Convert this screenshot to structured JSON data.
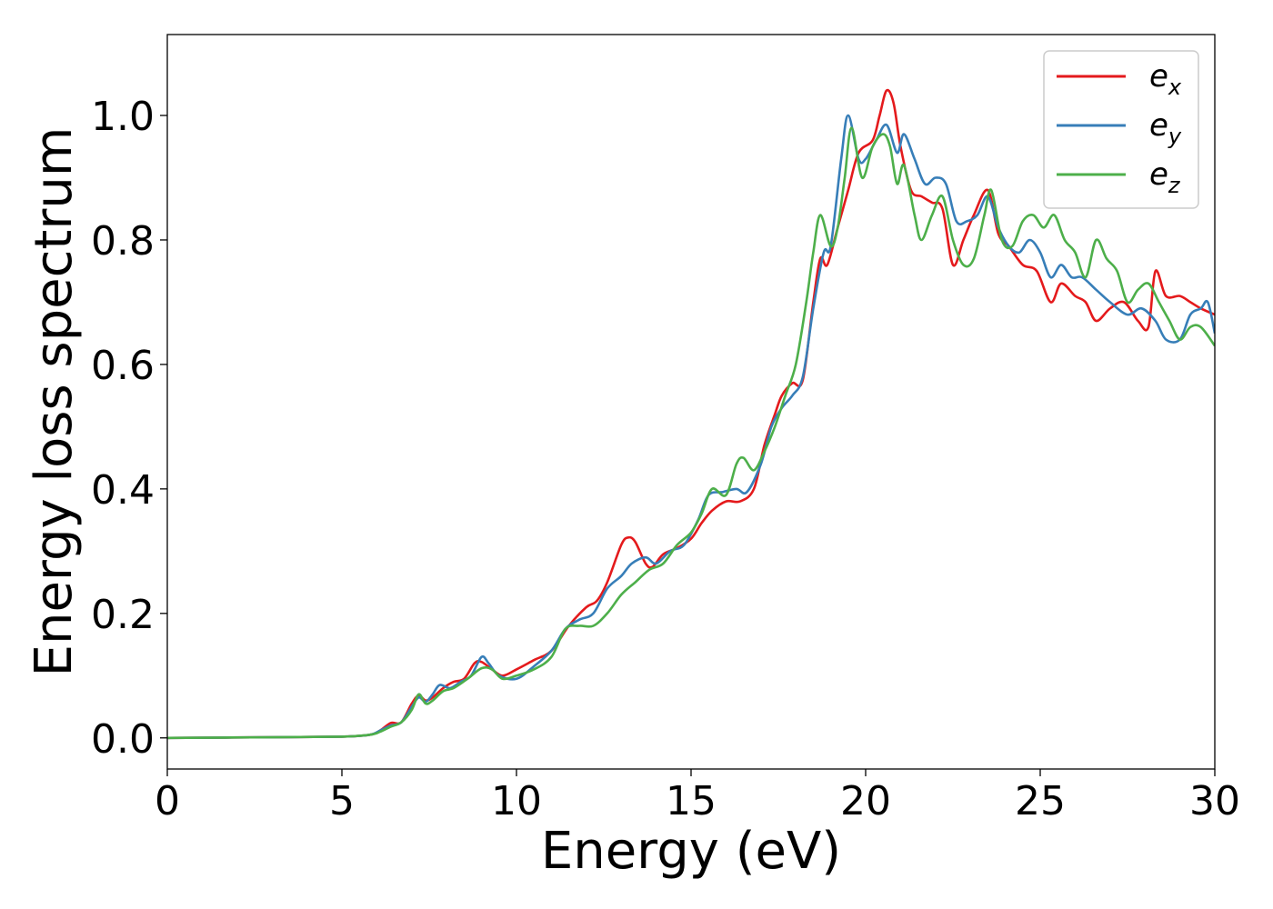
{
  "chart_data": {
    "type": "line",
    "title": "",
    "xlabel": "Energy (eV)",
    "ylabel": "Energy loss spectrum",
    "xlim": [
      0,
      30
    ],
    "ylim": [
      -0.05,
      1.13
    ],
    "x_ticks": [
      0,
      5,
      10,
      15,
      20,
      25,
      30
    ],
    "x_tick_labels": [
      "0",
      "5",
      "10",
      "15",
      "20",
      "25",
      "30"
    ],
    "y_ticks": [
      0.0,
      0.2,
      0.4,
      0.6,
      0.8,
      1.0
    ],
    "y_tick_labels": [
      "0.0",
      "0.2",
      "0.4",
      "0.6",
      "0.8",
      "1.0"
    ],
    "grid": false,
    "legend_position": "top-right",
    "series": [
      {
        "name": "e_x",
        "legend_base": "e",
        "legend_sub": "x",
        "color": "#e41a1c",
        "points": [
          [
            0,
            0
          ],
          [
            3,
            0.001
          ],
          [
            5,
            0.002
          ],
          [
            5.8,
            0.005
          ],
          [
            6.1,
            0.012
          ],
          [
            6.4,
            0.024
          ],
          [
            6.7,
            0.025
          ],
          [
            7.0,
            0.055
          ],
          [
            7.2,
            0.068
          ],
          [
            7.4,
            0.06
          ],
          [
            7.6,
            0.065
          ],
          [
            7.9,
            0.08
          ],
          [
            8.2,
            0.09
          ],
          [
            8.5,
            0.095
          ],
          [
            8.8,
            0.12
          ],
          [
            9.0,
            0.122
          ],
          [
            9.3,
            0.11
          ],
          [
            9.6,
            0.1
          ],
          [
            10.0,
            0.11
          ],
          [
            10.5,
            0.125
          ],
          [
            11.0,
            0.14
          ],
          [
            11.5,
            0.18
          ],
          [
            12.0,
            0.21
          ],
          [
            12.3,
            0.22
          ],
          [
            12.6,
            0.25
          ],
          [
            13.0,
            0.31
          ],
          [
            13.2,
            0.322
          ],
          [
            13.4,
            0.315
          ],
          [
            13.7,
            0.28
          ],
          [
            13.9,
            0.275
          ],
          [
            14.2,
            0.295
          ],
          [
            14.6,
            0.305
          ],
          [
            15.0,
            0.32
          ],
          [
            15.3,
            0.345
          ],
          [
            15.6,
            0.365
          ],
          [
            16.0,
            0.38
          ],
          [
            16.4,
            0.38
          ],
          [
            16.8,
            0.4
          ],
          [
            17.1,
            0.47
          ],
          [
            17.4,
            0.52
          ],
          [
            17.6,
            0.55
          ],
          [
            17.9,
            0.57
          ],
          [
            18.2,
            0.575
          ],
          [
            18.5,
            0.7
          ],
          [
            18.7,
            0.77
          ],
          [
            18.9,
            0.76
          ],
          [
            19.2,
            0.82
          ],
          [
            19.5,
            0.88
          ],
          [
            19.8,
            0.94
          ],
          [
            20.2,
            0.96
          ],
          [
            20.4,
            1.0
          ],
          [
            20.6,
            1.04
          ],
          [
            20.8,
            1.02
          ],
          [
            21.0,
            0.95
          ],
          [
            21.3,
            0.88
          ],
          [
            21.6,
            0.87
          ],
          [
            21.9,
            0.86
          ],
          [
            22.2,
            0.85
          ],
          [
            22.5,
            0.76
          ],
          [
            22.8,
            0.8
          ],
          [
            23.1,
            0.84
          ],
          [
            23.5,
            0.88
          ],
          [
            23.8,
            0.81
          ],
          [
            24.1,
            0.79
          ],
          [
            24.5,
            0.76
          ],
          [
            24.9,
            0.75
          ],
          [
            25.3,
            0.7
          ],
          [
            25.6,
            0.73
          ],
          [
            26.0,
            0.71
          ],
          [
            26.3,
            0.7
          ],
          [
            26.6,
            0.67
          ],
          [
            27.0,
            0.69
          ],
          [
            27.4,
            0.7
          ],
          [
            27.8,
            0.67
          ],
          [
            28.1,
            0.66
          ],
          [
            28.3,
            0.75
          ],
          [
            28.6,
            0.71
          ],
          [
            29.0,
            0.71
          ],
          [
            29.3,
            0.7
          ],
          [
            29.6,
            0.69
          ],
          [
            30,
            0.68
          ]
        ]
      },
      {
        "name": "e_y",
        "legend_base": "e",
        "legend_sub": "y",
        "color": "#377eb8",
        "points": [
          [
            0,
            0
          ],
          [
            3,
            0.001
          ],
          [
            5,
            0.002
          ],
          [
            5.8,
            0.005
          ],
          [
            6.1,
            0.012
          ],
          [
            6.4,
            0.02
          ],
          [
            6.7,
            0.025
          ],
          [
            7.0,
            0.05
          ],
          [
            7.2,
            0.065
          ],
          [
            7.4,
            0.058
          ],
          [
            7.6,
            0.07
          ],
          [
            7.8,
            0.085
          ],
          [
            8.1,
            0.08
          ],
          [
            8.4,
            0.09
          ],
          [
            8.7,
            0.1
          ],
          [
            9.0,
            0.13
          ],
          [
            9.2,
            0.12
          ],
          [
            9.5,
            0.1
          ],
          [
            10.0,
            0.095
          ],
          [
            10.5,
            0.115
          ],
          [
            11.0,
            0.14
          ],
          [
            11.4,
            0.175
          ],
          [
            11.8,
            0.19
          ],
          [
            12.2,
            0.2
          ],
          [
            12.6,
            0.24
          ],
          [
            13.0,
            0.26
          ],
          [
            13.3,
            0.28
          ],
          [
            13.7,
            0.29
          ],
          [
            14.0,
            0.28
          ],
          [
            14.4,
            0.3
          ],
          [
            14.8,
            0.31
          ],
          [
            15.2,
            0.35
          ],
          [
            15.5,
            0.39
          ],
          [
            15.9,
            0.395
          ],
          [
            16.3,
            0.4
          ],
          [
            16.6,
            0.395
          ],
          [
            17.0,
            0.44
          ],
          [
            17.3,
            0.5
          ],
          [
            17.6,
            0.53
          ],
          [
            17.9,
            0.55
          ],
          [
            18.2,
            0.58
          ],
          [
            18.5,
            0.69
          ],
          [
            18.8,
            0.78
          ],
          [
            19.0,
            0.79
          ],
          [
            19.3,
            0.93
          ],
          [
            19.5,
            1.0
          ],
          [
            19.8,
            0.93
          ],
          [
            20.0,
            0.93
          ],
          [
            20.3,
            0.96
          ],
          [
            20.6,
            0.985
          ],
          [
            20.9,
            0.94
          ],
          [
            21.1,
            0.97
          ],
          [
            21.4,
            0.93
          ],
          [
            21.7,
            0.89
          ],
          [
            22.0,
            0.9
          ],
          [
            22.3,
            0.89
          ],
          [
            22.6,
            0.83
          ],
          [
            22.9,
            0.83
          ],
          [
            23.2,
            0.84
          ],
          [
            23.5,
            0.87
          ],
          [
            23.8,
            0.82
          ],
          [
            24.1,
            0.79
          ],
          [
            24.4,
            0.78
          ],
          [
            24.7,
            0.8
          ],
          [
            25.0,
            0.78
          ],
          [
            25.3,
            0.74
          ],
          [
            25.6,
            0.76
          ],
          [
            25.9,
            0.74
          ],
          [
            26.2,
            0.74
          ],
          [
            26.6,
            0.72
          ],
          [
            27.0,
            0.7
          ],
          [
            27.5,
            0.68
          ],
          [
            27.9,
            0.69
          ],
          [
            28.3,
            0.67
          ],
          [
            28.6,
            0.64
          ],
          [
            29.0,
            0.64
          ],
          [
            29.3,
            0.68
          ],
          [
            29.6,
            0.69
          ],
          [
            29.8,
            0.7
          ],
          [
            30,
            0.65
          ]
        ]
      },
      {
        "name": "e_z",
        "legend_base": "e",
        "legend_sub": "z",
        "color": "#4daf4a",
        "points": [
          [
            0,
            0
          ],
          [
            3,
            0.001
          ],
          [
            5,
            0.002
          ],
          [
            5.8,
            0.005
          ],
          [
            6.1,
            0.01
          ],
          [
            6.4,
            0.018
          ],
          [
            6.7,
            0.025
          ],
          [
            7.0,
            0.045
          ],
          [
            7.2,
            0.07
          ],
          [
            7.4,
            0.055
          ],
          [
            7.6,
            0.06
          ],
          [
            7.9,
            0.075
          ],
          [
            8.2,
            0.08
          ],
          [
            8.6,
            0.095
          ],
          [
            9.0,
            0.112
          ],
          [
            9.3,
            0.11
          ],
          [
            9.6,
            0.095
          ],
          [
            10.0,
            0.1
          ],
          [
            10.5,
            0.11
          ],
          [
            11.0,
            0.13
          ],
          [
            11.4,
            0.175
          ],
          [
            11.8,
            0.18
          ],
          [
            12.2,
            0.18
          ],
          [
            12.6,
            0.2
          ],
          [
            13.0,
            0.23
          ],
          [
            13.4,
            0.25
          ],
          [
            13.8,
            0.27
          ],
          [
            14.2,
            0.28
          ],
          [
            14.6,
            0.31
          ],
          [
            15.0,
            0.33
          ],
          [
            15.3,
            0.36
          ],
          [
            15.6,
            0.4
          ],
          [
            16.0,
            0.39
          ],
          [
            16.3,
            0.44
          ],
          [
            16.5,
            0.45
          ],
          [
            16.8,
            0.43
          ],
          [
            17.1,
            0.46
          ],
          [
            17.4,
            0.5
          ],
          [
            17.7,
            0.55
          ],
          [
            18.0,
            0.6
          ],
          [
            18.3,
            0.7
          ],
          [
            18.5,
            0.78
          ],
          [
            18.7,
            0.84
          ],
          [
            19.0,
            0.79
          ],
          [
            19.2,
            0.82
          ],
          [
            19.4,
            0.9
          ],
          [
            19.6,
            0.98
          ],
          [
            19.9,
            0.9
          ],
          [
            20.2,
            0.95
          ],
          [
            20.5,
            0.97
          ],
          [
            20.7,
            0.95
          ],
          [
            20.9,
            0.89
          ],
          [
            21.1,
            0.92
          ],
          [
            21.4,
            0.84
          ],
          [
            21.6,
            0.8
          ],
          [
            21.9,
            0.84
          ],
          [
            22.2,
            0.87
          ],
          [
            22.5,
            0.8
          ],
          [
            22.8,
            0.76
          ],
          [
            23.1,
            0.77
          ],
          [
            23.4,
            0.84
          ],
          [
            23.6,
            0.88
          ],
          [
            23.9,
            0.8
          ],
          [
            24.2,
            0.79
          ],
          [
            24.5,
            0.83
          ],
          [
            24.8,
            0.84
          ],
          [
            25.1,
            0.82
          ],
          [
            25.4,
            0.84
          ],
          [
            25.7,
            0.8
          ],
          [
            26.0,
            0.78
          ],
          [
            26.3,
            0.74
          ],
          [
            26.6,
            0.8
          ],
          [
            26.9,
            0.77
          ],
          [
            27.2,
            0.75
          ],
          [
            27.5,
            0.7
          ],
          [
            27.8,
            0.72
          ],
          [
            28.1,
            0.73
          ],
          [
            28.4,
            0.7
          ],
          [
            28.7,
            0.67
          ],
          [
            29.0,
            0.64
          ],
          [
            29.3,
            0.66
          ],
          [
            29.6,
            0.66
          ],
          [
            30,
            0.63
          ]
        ]
      }
    ]
  }
}
